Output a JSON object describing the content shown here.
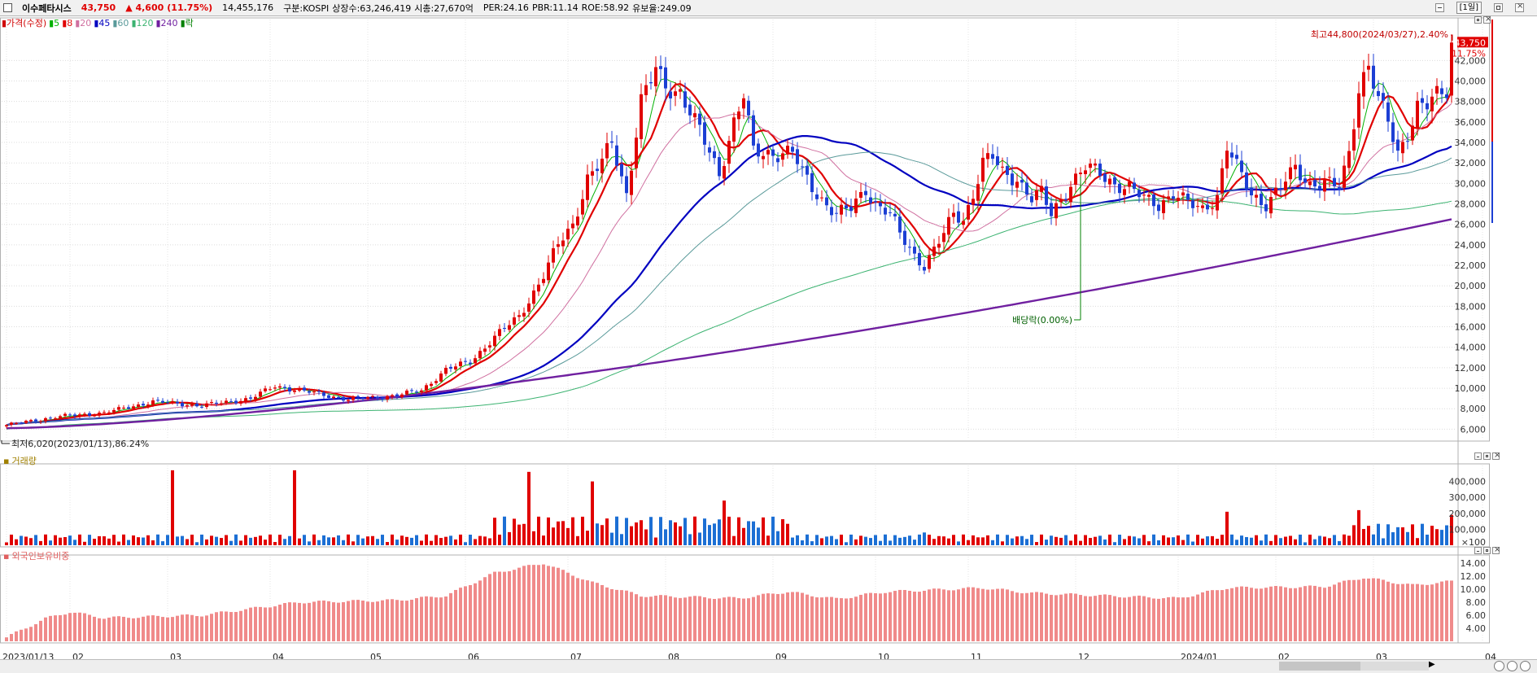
{
  "header": {
    "stock_name": "이수페타시스",
    "price": "43,750",
    "change": "▲ 4,600",
    "change_pct": "(11.75%)",
    "volume": "14,455,176",
    "market": "구분:KOSPI",
    "shares": "상장수:63,246,419",
    "mktcap": "시총:27,670억",
    "per": "PER:24.16",
    "pbr": "PBR:11.14",
    "roe": "ROE:58.92",
    "reserve": "유보율:249.09",
    "period_button": "[1일]"
  },
  "price_panel": {
    "legend": [
      {
        "label": "가격(수정)",
        "color": "#d00000"
      },
      {
        "label": "5",
        "color": "#00b000"
      },
      {
        "label": "8",
        "color": "#e00000"
      },
      {
        "label": "20",
        "color": "#d070a0"
      },
      {
        "label": "45",
        "color": "#0000c0"
      },
      {
        "label": "60",
        "color": "#5a9a9a"
      },
      {
        "label": "120",
        "color": "#3cb371"
      },
      {
        "label": "240",
        "color": "#7020a0"
      },
      {
        "label": "락",
        "color": "#008000"
      }
    ],
    "high_annotation": "최고44,800(2024/03/27),2.40%",
    "low_annotation": "최저6,020(2023/01/13),86.24%",
    "dividend_annotation": "배당락(0.00%)",
    "current_price_tag": "43,750",
    "current_pct_tag": "11.75%"
  },
  "volume_panel": {
    "legend": "거래량",
    "unit": "×100"
  },
  "foreign_panel": {
    "legend": "외국인보유비중"
  },
  "chart_data": [
    {
      "type": "candlestick",
      "title": "",
      "ylim": [
        5000,
        46000
      ],
      "yticks": [
        6000,
        8000,
        10000,
        12000,
        14000,
        16000,
        18000,
        20000,
        22000,
        24000,
        26000,
        28000,
        30000,
        32000,
        34000,
        36000,
        38000,
        40000,
        42000
      ],
      "x_labels": [
        "2023/01/13",
        "02",
        "03",
        "04",
        "05",
        "06",
        "07",
        "08",
        "09",
        "10",
        "11",
        "12",
        "2024/01",
        "02",
        "03",
        "04"
      ],
      "close_anchors": [
        [
          0,
          6400
        ],
        [
          10,
          7200
        ],
        [
          20,
          7600
        ],
        [
          30,
          8700
        ],
        [
          40,
          8300
        ],
        [
          50,
          9000
        ],
        [
          55,
          10200
        ],
        [
          60,
          9800
        ],
        [
          70,
          8900
        ],
        [
          75,
          9100
        ],
        [
          80,
          9300
        ],
        [
          85,
          9800
        ],
        [
          90,
          11800
        ],
        [
          95,
          12600
        ],
        [
          100,
          15000
        ],
        [
          105,
          17000
        ],
        [
          110,
          21000
        ],
        [
          113,
          24000
        ],
        [
          116,
          26000
        ],
        [
          119,
          30500
        ],
        [
          122,
          32000
        ],
        [
          124,
          34000
        ],
        [
          127,
          29000
        ],
        [
          130,
          38000
        ],
        [
          133,
          41000
        ],
        [
          135,
          39500
        ],
        [
          138,
          39000
        ],
        [
          140,
          37000
        ],
        [
          142,
          35000
        ],
        [
          144,
          33000
        ],
        [
          146,
          31000
        ],
        [
          149,
          36000
        ],
        [
          151,
          38500
        ],
        [
          153,
          33000
        ],
        [
          157,
          33000
        ],
        [
          161,
          33000
        ],
        [
          163,
          31000
        ],
        [
          166,
          29000
        ],
        [
          170,
          27000
        ],
        [
          173,
          27500
        ],
        [
          176,
          29500
        ],
        [
          178,
          28000
        ],
        [
          181,
          27000
        ],
        [
          183,
          25000
        ],
        [
          186,
          23000
        ],
        [
          188,
          22000
        ],
        [
          190,
          23500
        ],
        [
          192,
          25000
        ],
        [
          194,
          27000
        ],
        [
          196,
          26500
        ],
        [
          198,
          29000
        ],
        [
          200,
          32000
        ],
        [
          202,
          32500
        ],
        [
          204,
          31000
        ],
        [
          207,
          30500
        ],
        [
          210,
          28500
        ],
        [
          212,
          29000
        ],
        [
          214,
          27000
        ],
        [
          216,
          28500
        ],
        [
          218,
          30000
        ],
        [
          221,
          31500
        ],
        [
          224,
          31000
        ],
        [
          227,
          30000
        ],
        [
          230,
          29500
        ],
        [
          233,
          28500
        ],
        [
          236,
          28000
        ],
        [
          239,
          29000
        ],
        [
          242,
          28000
        ],
        [
          245,
          27500
        ],
        [
          248,
          28800
        ],
        [
          250,
          33500
        ],
        [
          252,
          31500
        ],
        [
          255,
          29000
        ],
        [
          258,
          28000
        ],
        [
          261,
          29500
        ],
        [
          264,
          31500
        ],
        [
          267,
          30000
        ],
        [
          270,
          30000
        ],
        [
          273,
          29500
        ],
        [
          275,
          33000
        ],
        [
          277,
          39500
        ],
        [
          279,
          41500
        ],
        [
          281,
          38000
        ],
        [
          283,
          36000
        ],
        [
          285,
          33000
        ],
        [
          287,
          35000
        ],
        [
          289,
          37500
        ],
        [
          291,
          37500
        ],
        [
          293,
          38500
        ],
        [
          295,
          39200
        ],
        [
          296,
          43750
        ]
      ],
      "ma_periods": [
        5,
        8,
        20,
        45,
        60,
        120,
        240
      ],
      "ma_colors": [
        "#00b000",
        "#e00000",
        "#d070a0",
        "#0000c0",
        "#5a9a9a",
        "#3cb371",
        "#7020a0"
      ]
    },
    {
      "type": "bar",
      "title": "",
      "yticks": [
        100000,
        200000,
        300000,
        400000
      ],
      "ytick_labels": [
        "100,000",
        "200,000",
        "300,000",
        "400,000"
      ],
      "ylim": [
        0,
        500000
      ]
    },
    {
      "type": "bar",
      "title": "",
      "yticks": [
        4,
        6,
        8,
        10,
        12,
        14
      ],
      "ytick_labels": [
        "4.00",
        "6.00",
        "8.00",
        "10.00",
        "12.00",
        "14.00"
      ],
      "ylim": [
        2,
        15
      ]
    }
  ]
}
